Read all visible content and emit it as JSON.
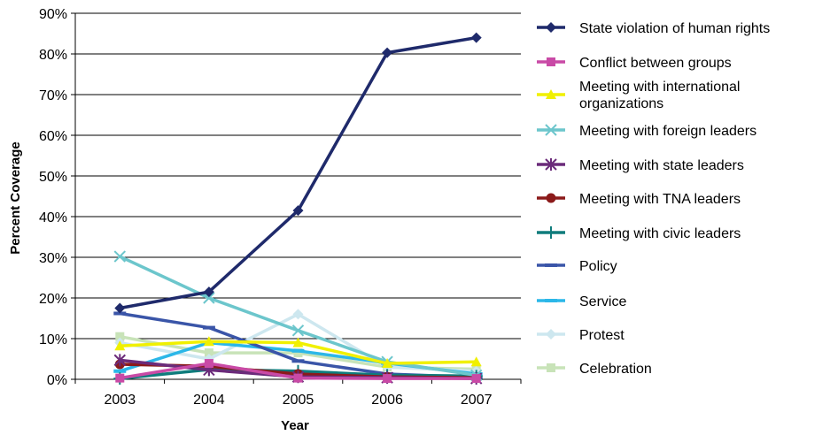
{
  "chart_data": {
    "type": "line",
    "xlabel": "Year",
    "ylabel": "Percent Coverage",
    "categories": [
      "2003",
      "2004",
      "2005",
      "2006",
      "2007"
    ],
    "ylim": [
      0,
      90
    ],
    "yticks": [
      "0%",
      "10%",
      "20%",
      "30%",
      "40%",
      "50%",
      "60%",
      "70%",
      "80%",
      "90%"
    ],
    "grid": "horizontal",
    "legend_position": "right",
    "series": [
      {
        "name": "State violation of human rights",
        "color": "#1f2a6b",
        "marker": "diamond",
        "values": [
          17.5,
          21.5,
          41.5,
          80.3,
          84.0
        ]
      },
      {
        "name": "Conflict between groups",
        "color": "#c94aa6",
        "marker": "square",
        "values": [
          0.3,
          3.9,
          0.3,
          0.2,
          0.2
        ]
      },
      {
        "name": "Meeting with international organizations",
        "color": "#f0f000",
        "marker": "triangle",
        "values": [
          8.2,
          9.3,
          9.0,
          3.9,
          4.3
        ]
      },
      {
        "name": "Meeting with foreign leaders",
        "color": "#6cc6cc",
        "marker": "x",
        "values": [
          30.2,
          20.0,
          12.0,
          4.3,
          1.0
        ]
      },
      {
        "name": "Meeting with state leaders",
        "color": "#6b2b7a",
        "marker": "asterisk",
        "values": [
          4.7,
          2.3,
          0.6,
          0.4,
          0.2
        ]
      },
      {
        "name": "Meeting with TNA leaders",
        "color": "#8b1a1a",
        "marker": "circle",
        "values": [
          3.7,
          3.2,
          1.3,
          0.6,
          0.4
        ]
      },
      {
        "name": "Meeting with civic leaders",
        "color": "#0f7c7c",
        "marker": "plus",
        "values": [
          0.2,
          2.4,
          2.0,
          1.0,
          0.8
        ]
      },
      {
        "name": "Policy",
        "color": "#3a55a8",
        "marker": "dash",
        "values": [
          16.2,
          12.7,
          4.5,
          1.3,
          0.5
        ]
      },
      {
        "name": "Service",
        "color": "#2bb7e8",
        "marker": "dash",
        "values": [
          2.0,
          9.0,
          7.0,
          4.0,
          1.3
        ]
      },
      {
        "name": "Protest",
        "color": "#cde7ef",
        "marker": "diamond",
        "values": [
          9.0,
          5.0,
          16.0,
          3.0,
          2.0
        ]
      },
      {
        "name": "Celebration",
        "color": "#c8e3b8",
        "marker": "square",
        "values": [
          10.5,
          6.5,
          6.5,
          3.0,
          2.5
        ]
      }
    ]
  }
}
